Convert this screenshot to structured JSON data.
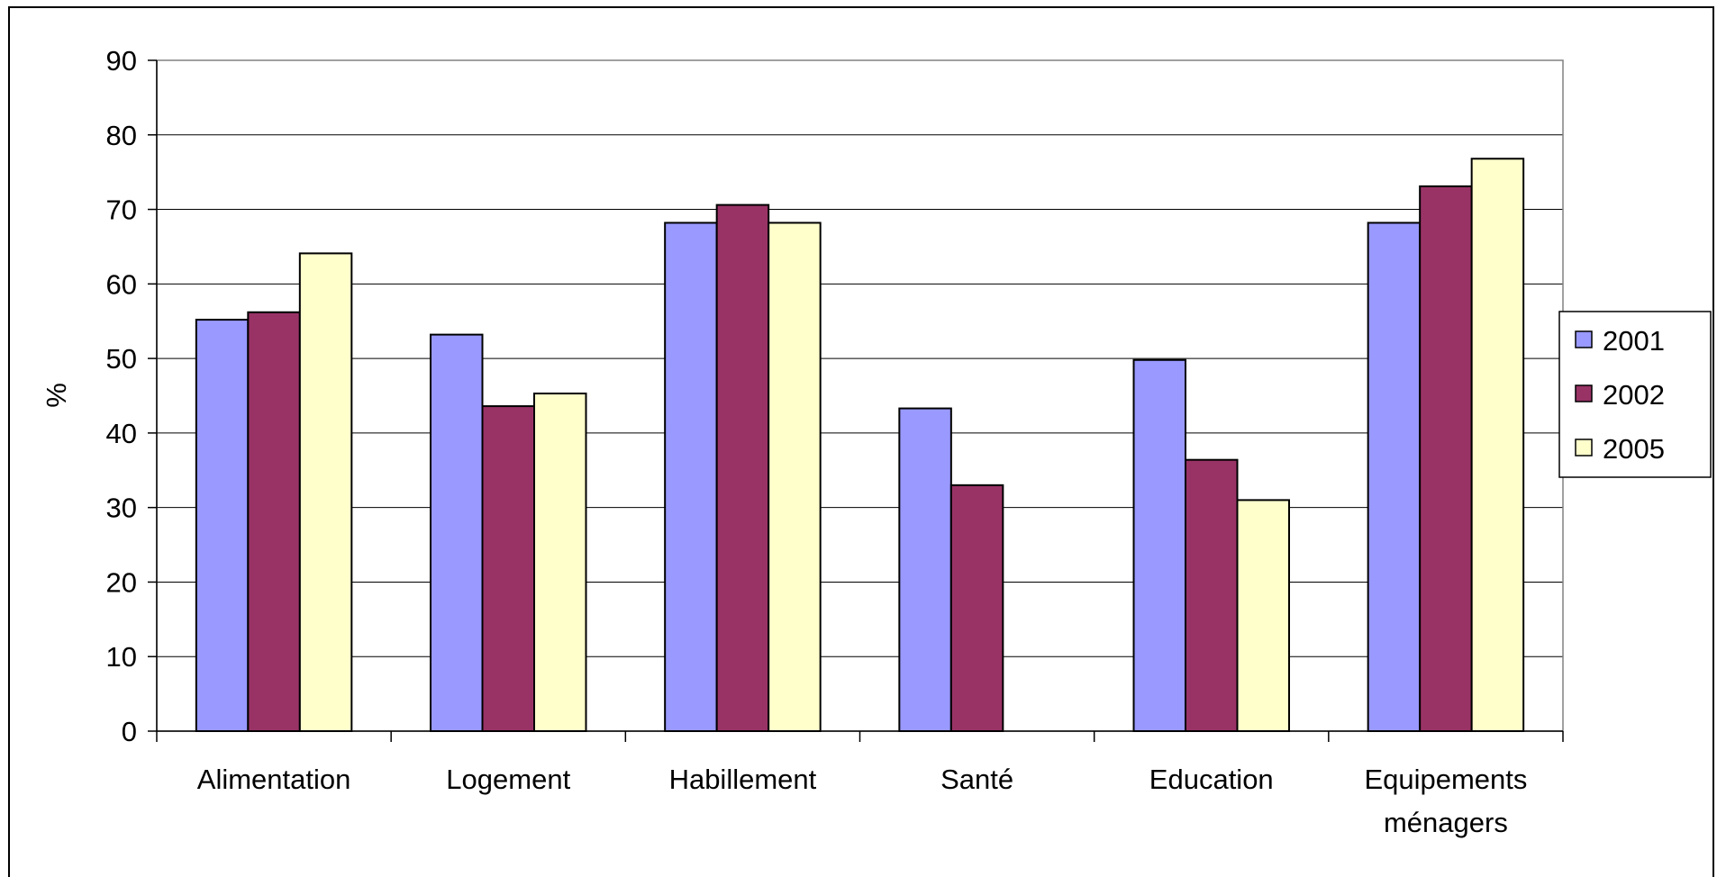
{
  "chart_data": {
    "type": "bar",
    "title": "",
    "xlabel": "",
    "ylabel": "%",
    "ylim": [
      0,
      90
    ],
    "yticks": [
      0,
      10,
      20,
      30,
      40,
      50,
      60,
      70,
      80,
      90
    ],
    "grid": true,
    "legend_position": "right",
    "categories": [
      [
        "Alimentation"
      ],
      [
        "Logement"
      ],
      [
        "Habillement"
      ],
      [
        "Santé"
      ],
      [
        "Education"
      ],
      [
        "Equipements",
        "ménagers"
      ]
    ],
    "series": [
      {
        "name": "2001",
        "color": "#9999FF",
        "values": [
          55.2,
          53.2,
          68.2,
          43.3,
          49.8,
          68.2
        ]
      },
      {
        "name": "2002",
        "color": "#993366",
        "values": [
          56.2,
          43.6,
          70.6,
          33.0,
          36.4,
          73.1
        ]
      },
      {
        "name": "2005",
        "color": "#FFFFCC",
        "values": [
          64.1,
          45.3,
          68.2,
          null,
          31.0,
          76.8
        ]
      }
    ]
  }
}
